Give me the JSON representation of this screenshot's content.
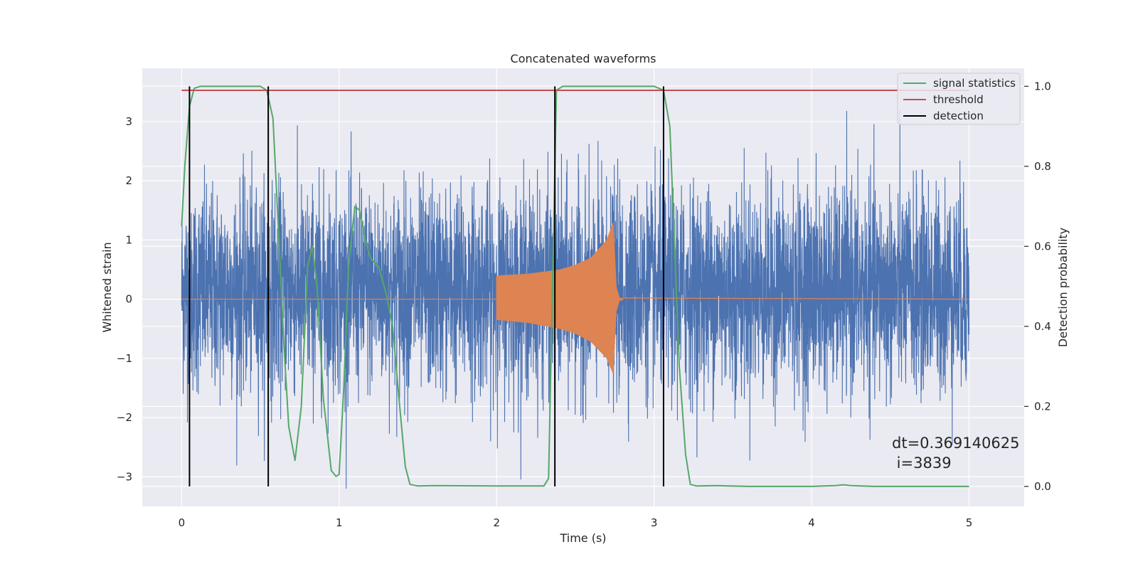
{
  "chart_data": {
    "type": "line",
    "title": "Concatenated waveforms",
    "xlabel": "Time (s)",
    "ylabel": "Whitened strain",
    "y2label": "Detection probability",
    "xlim": [
      -0.25,
      5.35
    ],
    "ylim": [
      -3.5,
      3.9
    ],
    "y2lim": [
      -0.05,
      1.045
    ],
    "xticks": [
      0,
      1,
      2,
      3,
      4,
      5
    ],
    "xtick_labels": [
      "0",
      "1",
      "2",
      "3",
      "4",
      "5"
    ],
    "yticks": [
      -3,
      -2,
      -1,
      0,
      1,
      2,
      3
    ],
    "ytick_labels": [
      "−3",
      "−2",
      "−1",
      "0",
      "1",
      "2",
      "3"
    ],
    "y2ticks": [
      0.0,
      0.2,
      0.4,
      0.6,
      0.8,
      1.0
    ],
    "y2tick_labels": [
      "0.0",
      "0.2",
      "0.4",
      "0.6",
      "0.8",
      "1.0"
    ],
    "grid": true,
    "legend_position": "top-right",
    "colors": {
      "noise": "#4c72b0",
      "injection": "#dd8452",
      "statistics": "#55a868",
      "threshold": "#c44e52",
      "detection": "#000000",
      "background": "#eaeaf2",
      "grid": "#ffffff"
    },
    "series": [
      {
        "name": "",
        "axis": "left",
        "kind": "whitened strain noise",
        "x_range": [
          0,
          5
        ],
        "envelope_typical": [
          -1.4,
          2.2
        ],
        "extremes": [
          -3.2,
          3.5
        ]
      },
      {
        "name": "",
        "axis": "left",
        "kind": "chirp injection",
        "x": [
          2.0,
          2.2,
          2.4,
          2.5,
          2.6,
          2.7,
          2.74,
          2.76,
          2.78,
          5.0
        ],
        "upper": [
          0.4,
          0.43,
          0.5,
          0.58,
          0.7,
          1.0,
          1.3,
          0.2,
          0.02,
          0.0
        ],
        "lower": [
          -0.35,
          -0.4,
          -0.5,
          -0.58,
          -0.72,
          -1.0,
          -1.25,
          -0.2,
          -0.02,
          0.0
        ]
      },
      {
        "name": "signal statistics",
        "axis": "right",
        "x": [
          0.0,
          0.02,
          0.05,
          0.08,
          0.12,
          0.2,
          0.5,
          0.54,
          0.58,
          0.62,
          0.65,
          0.68,
          0.72,
          0.76,
          0.8,
          0.83,
          0.86,
          0.9,
          0.95,
          0.98,
          1.0,
          1.03,
          1.06,
          1.1,
          1.13,
          1.17,
          1.2,
          1.25,
          1.3,
          1.34,
          1.38,
          1.42,
          1.45,
          1.5,
          1.6,
          2.0,
          2.3,
          2.33,
          2.36,
          2.38,
          2.42,
          2.5,
          3.0,
          3.06,
          3.1,
          3.13,
          3.16,
          3.2,
          3.23,
          3.27,
          3.4,
          3.6,
          4.0,
          4.15,
          4.2,
          4.25,
          4.4,
          5.0
        ],
        "y": [
          0.65,
          0.8,
          0.95,
          0.995,
          1.0,
          1.0,
          1.0,
          0.99,
          0.92,
          0.6,
          0.35,
          0.15,
          0.065,
          0.2,
          0.55,
          0.6,
          0.5,
          0.22,
          0.04,
          0.025,
          0.03,
          0.25,
          0.55,
          0.7,
          0.69,
          0.61,
          0.57,
          0.55,
          0.48,
          0.4,
          0.22,
          0.05,
          0.005,
          0.001,
          0.002,
          0.001,
          0.001,
          0.02,
          0.6,
          0.99,
          1.0,
          1.0,
          1.0,
          0.99,
          0.9,
          0.6,
          0.3,
          0.08,
          0.005,
          0.001,
          0.002,
          0.0,
          0.0,
          0.002,
          0.004,
          0.002,
          0.0,
          0.0
        ]
      },
      {
        "name": "threshold",
        "axis": "right",
        "x": [
          0,
          5
        ],
        "y": [
          0.99,
          0.99
        ]
      },
      {
        "name": "detection",
        "axis": "right",
        "vlines": [
          0.05,
          0.55,
          2.37,
          3.06
        ],
        "ymin": 0.0,
        "ymax": 1.0
      }
    ],
    "annotations": {
      "line1": "dt=0.369140625",
      "line2": " i=3839"
    }
  }
}
